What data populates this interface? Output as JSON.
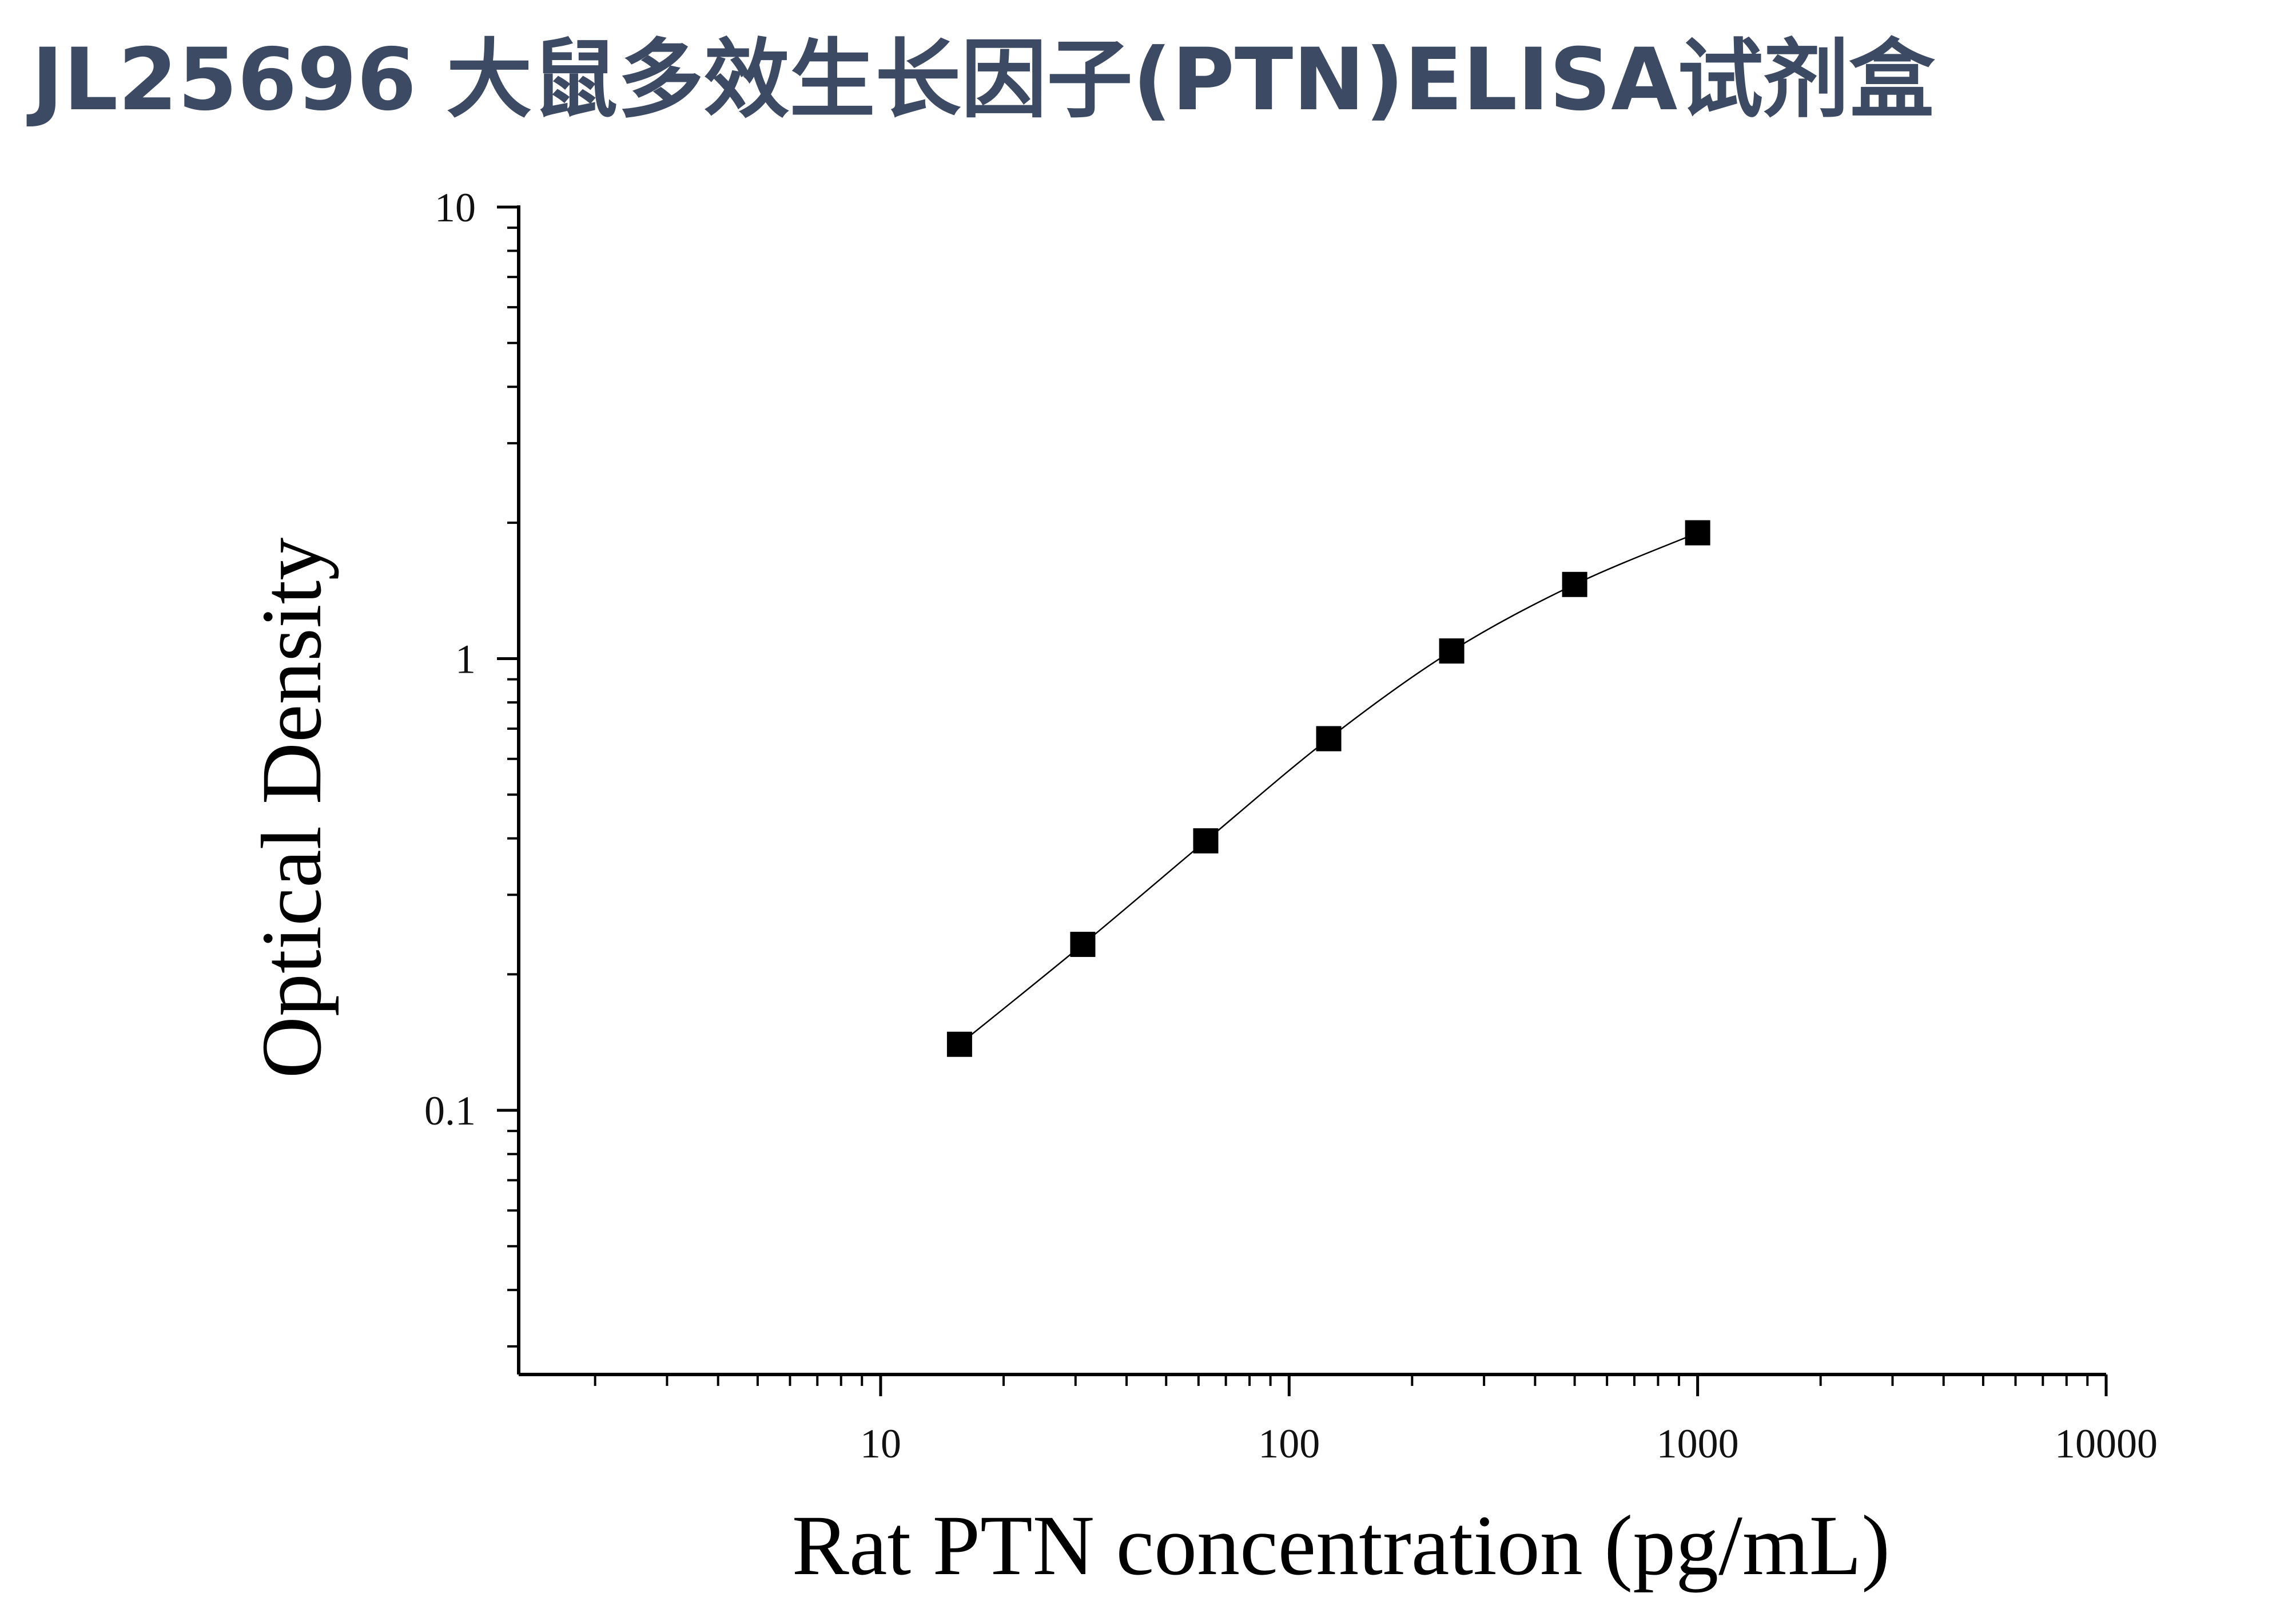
{
  "page": {
    "title": "JL25696 大鼠多效生长因子(PTN)ELISA试剂盒"
  },
  "colors": {
    "title": "#3d4a63",
    "axis": "#000000",
    "marker": "#000000",
    "curve": "#000000"
  },
  "chart_data": {
    "type": "scatter",
    "xlabel": "Rat PTN concentration (pg/mL)",
    "ylabel": "Optical Density",
    "xscale": "log",
    "yscale": "log",
    "xlim": [
      1.3,
      10000
    ],
    "ylim": [
      0.026,
      10
    ],
    "x_tick_labels": [
      "10",
      "100",
      "1000",
      "10000"
    ],
    "y_tick_labels": [
      "0.1",
      "1",
      "10"
    ],
    "grid": false,
    "legend": "none",
    "marker": "square",
    "fit_curve": true,
    "series": [
      {
        "x": [
          15.6,
          31.25,
          62.5,
          125,
          250,
          500,
          1000
        ],
        "y": [
          0.14,
          0.233,
          0.395,
          0.665,
          1.04,
          1.46,
          1.9
        ]
      }
    ]
  }
}
